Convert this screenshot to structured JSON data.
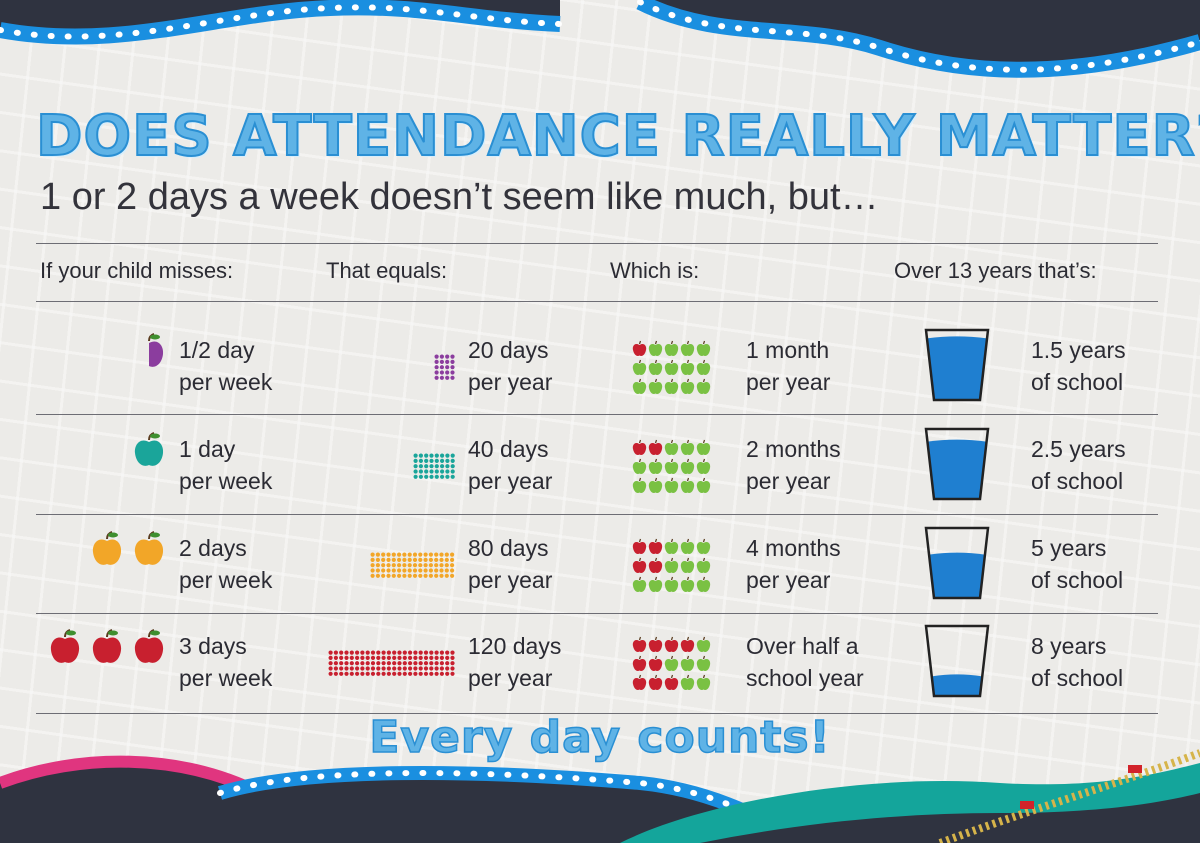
{
  "title": "DOES ATTENDANCE REALLY MATTER?",
  "subtitle": "1 or 2 days a week doesn’t seem like much, but…",
  "headers": {
    "misses": "If your child misses:",
    "equals": "That equals:",
    "which": "Which is:",
    "over": "Over 13 years that’s:"
  },
  "rows": [
    {
      "misses": [
        "1/2 day",
        "per week"
      ],
      "equals": [
        "20 days",
        "per year"
      ],
      "which": [
        "1 month",
        "per year"
      ],
      "over": [
        "1.5 years",
        "of school"
      ],
      "apples": 0.5,
      "apple_color": "#8b3d9e",
      "dots": 20,
      "dot_color": "#8b3d9e",
      "red_apples": 1,
      "glass_fill": 0.88
    },
    {
      "misses": [
        "1 day",
        "per week"
      ],
      "equals": [
        "40 days",
        "per year"
      ],
      "which": [
        "2 months",
        "per year"
      ],
      "over": [
        "2.5 years",
        "of school"
      ],
      "apples": 1,
      "apple_color": "#1aa59a",
      "dots": 40,
      "dot_color": "#1aa59a",
      "red_apples": 2,
      "glass_fill": 0.82
    },
    {
      "misses": [
        "2 days",
        "per week"
      ],
      "equals": [
        "80 days",
        "per year"
      ],
      "which": [
        "4 months",
        "per year"
      ],
      "over": [
        "5 years",
        "of school"
      ],
      "apples": 2,
      "apple_color": "#f2a628",
      "dots": 80,
      "dot_color": "#f2a628",
      "red_apples": 4,
      "glass_fill": 0.62
    },
    {
      "misses": [
        "3 days",
        "per week"
      ],
      "equals": [
        "120 days",
        "per year"
      ],
      "which": [
        "Over half a",
        "school year"
      ],
      "over": [
        "8 years",
        "of school"
      ],
      "apples": 3,
      "apple_color": "#c8202f",
      "dots": 120,
      "dot_color": "#c8202f",
      "red_apples": 8,
      "glass_fill": 0.28
    }
  ],
  "footer": "Every day counts!",
  "colors": {
    "title_blue": "#5fb3e6",
    "water_blue": "#1f7fd0",
    "green_apple": "#7ac143",
    "red_apple": "#c8202f",
    "navy_wave": "#2f3340",
    "wave_dots": "#1a8fe0"
  }
}
